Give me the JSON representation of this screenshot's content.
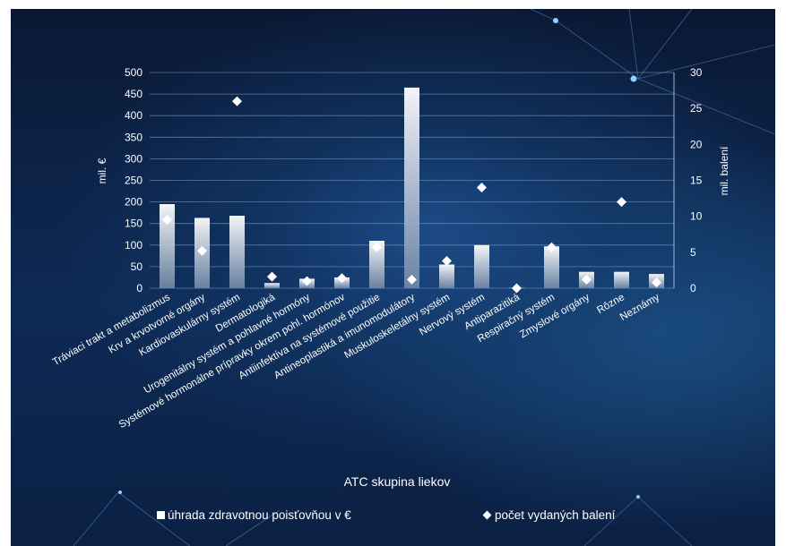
{
  "chart_data": {
    "type": "bar",
    "title": "",
    "xlabel": "ATC skupina liekov",
    "ylabel": "mil. €",
    "y2label": "mil. balení",
    "ylim": [
      0,
      500
    ],
    "y2lim": [
      0,
      30
    ],
    "yticks": [
      0,
      50,
      100,
      150,
      200,
      250,
      300,
      350,
      400,
      450,
      500
    ],
    "y2ticks": [
      0,
      5,
      10,
      15,
      20,
      25,
      30
    ],
    "grid": true,
    "legend_position": "bottom",
    "categories": [
      "Tráviaci trakt a metabolizmus",
      "Krv a krvotvorné orgány",
      "Kardiovaskulárny systém",
      "Dermatologiká",
      "Urogenitálny systém a pohlavné hormóny",
      "Systémové hormonálne prípravky okrem pohl. hormónov",
      "Antiinfektíva na systémové použitie",
      "Antineoplastiká a imunomodulátory",
      "Muskuloskeletálny systém",
      "Nervový systém",
      "Antiparazitiká",
      "Respiračný systém",
      "Zmyslové orgány",
      "Rôzne",
      "Neznámy"
    ],
    "series": [
      {
        "name": "úhrada zdravotnou poisťovňou v €",
        "type": "bar",
        "axis": "left",
        "values": [
          195,
          163,
          168,
          12,
          22,
          25,
          110,
          465,
          55,
          100,
          1,
          97,
          38,
          38,
          33
        ]
      },
      {
        "name": "počet vydaných balení",
        "type": "scatter",
        "axis": "right",
        "values": [
          9.5,
          5.2,
          26,
          1.6,
          1.0,
          1.4,
          5.7,
          1.2,
          3.8,
          14.0,
          0,
          5.7,
          1.2,
          12.0,
          0.8
        ]
      }
    ],
    "colors": {
      "bar_top": "#ffffff",
      "bar_bottom": "#6f87a6",
      "marker": "#ffffff",
      "grid": "#6a8fbf"
    }
  }
}
